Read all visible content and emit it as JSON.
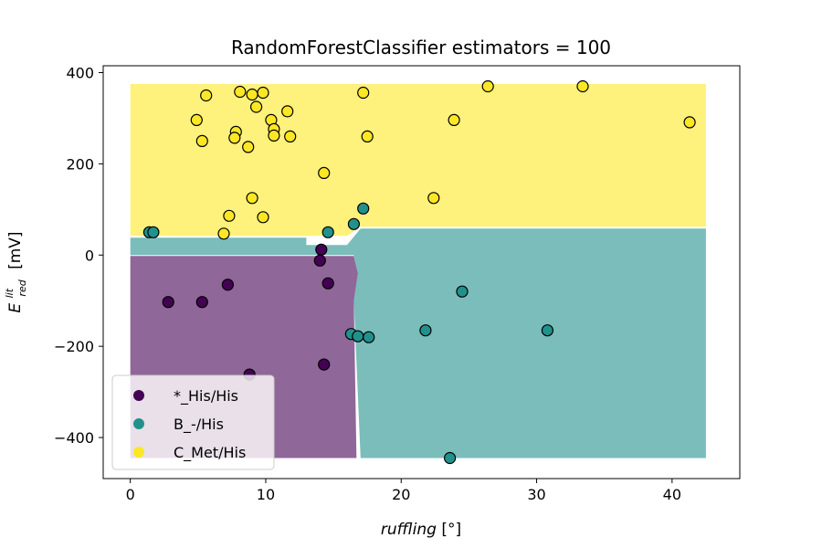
{
  "chart_data": {
    "type": "scatter",
    "title": "RandomForestClassifier estimators = 100",
    "xlabel_main": "ruffling",
    "xlabel_unit": "[°]",
    "ylabel_main": "E",
    "ylabel_sup": "lit",
    "ylabel_sub": "red",
    "ylabel_unit": "[mV]",
    "xlim": [
      -2,
      45
    ],
    "ylim": [
      -490,
      415
    ],
    "xticks": [
      0,
      10,
      20,
      30,
      40
    ],
    "yticks": [
      -400,
      -200,
      0,
      200,
      400
    ],
    "grid": false,
    "legend_position": "lower-left",
    "decision_regions": [
      {
        "class": "C_Met/His",
        "color": "#fde725",
        "polygon": [
          [
            0,
            375
          ],
          [
            42.5,
            375
          ],
          [
            42.5,
            62
          ],
          [
            17,
            62
          ],
          [
            16,
            42
          ],
          [
            0,
            42
          ]
        ]
      },
      {
        "class": "B_-/His",
        "color": "#21918c",
        "polygon": [
          [
            0,
            38
          ],
          [
            13,
            38
          ],
          [
            13,
            22
          ],
          [
            16,
            22
          ],
          [
            17,
            58
          ],
          [
            42.5,
            58
          ],
          [
            42.5,
            -445
          ],
          [
            17,
            -445
          ],
          [
            16.5,
            -100
          ],
          [
            16.8,
            -40
          ],
          [
            16.5,
            0
          ],
          [
            0,
            0
          ]
        ]
      },
      {
        "class": "*_His/His",
        "color": "#440154",
        "polygon": [
          [
            0,
            -2
          ],
          [
            16.5,
            -2
          ],
          [
            16.8,
            -40
          ],
          [
            16.5,
            -100
          ],
          [
            16.7,
            -445
          ],
          [
            0,
            -445
          ]
        ]
      }
    ],
    "series": [
      {
        "name": "*_His/His",
        "color": "#440154",
        "points": [
          [
            14.1,
            12
          ],
          [
            14.0,
            -12
          ],
          [
            14.6,
            -62
          ],
          [
            7.2,
            -65
          ],
          [
            2.8,
            -103
          ],
          [
            5.3,
            -103
          ],
          [
            14.3,
            -240
          ],
          [
            8.8,
            -262
          ]
        ]
      },
      {
        "name": "B_-/His",
        "color": "#21918c",
        "points": [
          [
            1.4,
            50
          ],
          [
            1.7,
            50
          ],
          [
            14.6,
            50
          ],
          [
            16.5,
            68
          ],
          [
            17.2,
            102
          ],
          [
            24.5,
            -80
          ],
          [
            21.8,
            -165
          ],
          [
            30.8,
            -165
          ],
          [
            16.3,
            -173
          ],
          [
            16.8,
            -178
          ],
          [
            17.6,
            -180
          ],
          [
            23.6,
            -445
          ]
        ]
      },
      {
        "name": "C_Met/His",
        "color": "#fde725",
        "points": [
          [
            5.6,
            350
          ],
          [
            8.1,
            358
          ],
          [
            9.0,
            352
          ],
          [
            9.8,
            356
          ],
          [
            17.2,
            356
          ],
          [
            26.4,
            370
          ],
          [
            33.4,
            370
          ],
          [
            4.9,
            296
          ],
          [
            10.4,
            296
          ],
          [
            23.9,
            296
          ],
          [
            41.3,
            291
          ],
          [
            9.3,
            325
          ],
          [
            11.6,
            315
          ],
          [
            7.8,
            270
          ],
          [
            7.7,
            257
          ],
          [
            10.6,
            276
          ],
          [
            10.6,
            262
          ],
          [
            11.8,
            260
          ],
          [
            17.5,
            260
          ],
          [
            5.3,
            250
          ],
          [
            8.7,
            237
          ],
          [
            14.3,
            180
          ],
          [
            9.0,
            125
          ],
          [
            22.4,
            125
          ],
          [
            7.3,
            86
          ],
          [
            9.8,
            83
          ],
          [
            6.9,
            47
          ]
        ]
      }
    ],
    "legend": [
      "*_His/His",
      "B_-/His",
      "C_Met/His"
    ]
  }
}
